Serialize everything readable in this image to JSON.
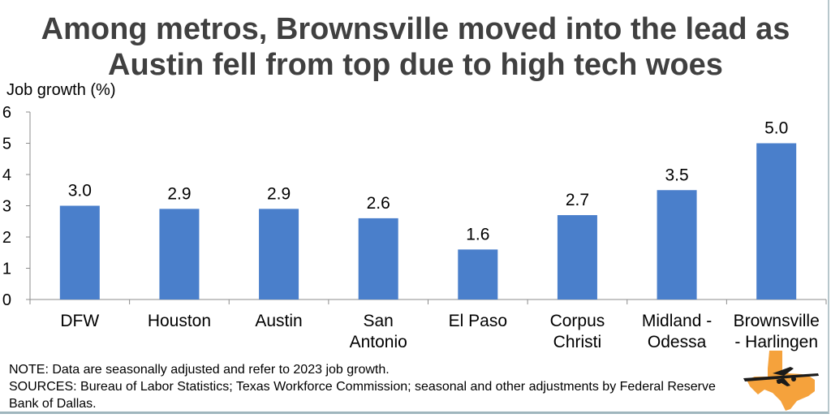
{
  "title_lines": [
    "Among metros, Brownsville moved into the lead as",
    "Austin fell from top due to high tech woes"
  ],
  "note": "NOTE: Data are seasonally adjusted and refer to 2023 job growth.",
  "sources_line1": "SOURCES: Bureau of Labor Statistics; Texas Workforce Commission; seasonal and other adjustments by Federal Reserve",
  "sources_line2": "Bank of Dallas.",
  "colors": {
    "bar": "#4a7fcb",
    "title": "#404040",
    "axis": "#8c8c8c",
    "logo_texas": "#f5a23c",
    "logo_plane": "#1a1a1a"
  },
  "chart_data": {
    "type": "bar",
    "ylabel": "Job growth (%)",
    "ylim": [
      0,
      6
    ],
    "yticks": [
      "0",
      "1",
      "2",
      "3",
      "4",
      "5",
      "6"
    ],
    "grid": false,
    "categories": [
      [
        "DFW"
      ],
      [
        "Houston"
      ],
      [
        "Austin"
      ],
      [
        "San",
        "Antonio"
      ],
      [
        "El Paso"
      ],
      [
        "Corpus",
        "Christi"
      ],
      [
        "Midland -",
        "Odessa"
      ],
      [
        "Brownsville",
        "- Harlingen"
      ]
    ],
    "values": [
      3.0,
      2.9,
      2.9,
      2.6,
      1.6,
      2.7,
      3.5,
      5.0
    ],
    "value_labels": [
      "3.0",
      "2.9",
      "2.9",
      "2.6",
      "1.6",
      "2.7",
      "3.5",
      "5.0"
    ]
  }
}
